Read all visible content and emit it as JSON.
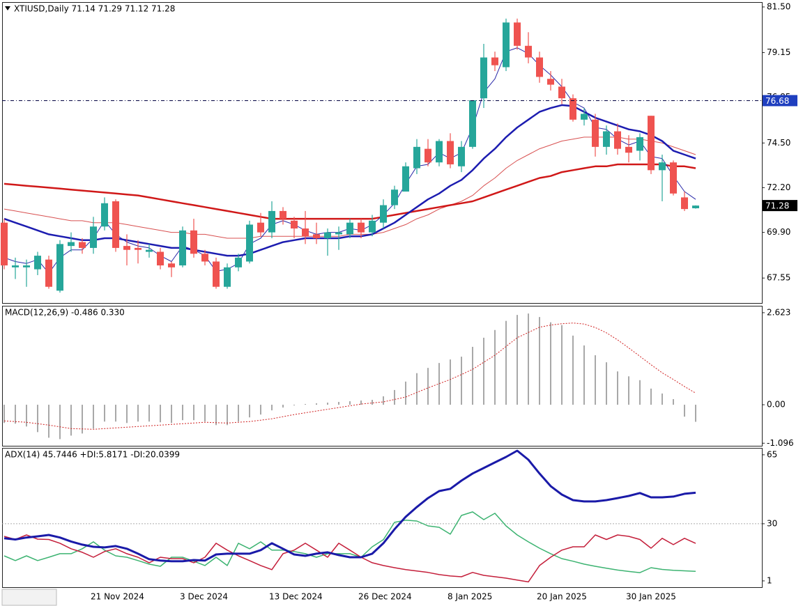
{
  "chart_data": [
    {
      "type": "candlestick",
      "title": "XTIUSD,Daily  71.14 71.29 71.12 71.28",
      "categories": [
        null,
        null,
        null,
        null,
        null,
        null,
        null,
        null,
        "21 Nov 2024",
        null,
        null,
        null,
        null,
        null,
        null,
        null,
        "3 Dec 2024",
        null,
        null,
        null,
        null,
        null,
        null,
        null,
        "13 Dec 2024",
        null,
        null,
        null,
        null,
        null,
        null,
        null,
        "26 Dec 2024",
        null,
        null,
        null,
        null,
        null,
        null,
        null,
        "8 Jan 2025",
        null,
        null,
        null,
        null,
        null,
        null,
        null,
        "20 Jan 2025",
        null,
        null,
        null,
        null,
        null,
        null,
        null,
        "30 Jan 2025",
        null,
        null,
        null,
        null,
        null,
        null
      ],
      "open": [
        70.4,
        68.1,
        68.1,
        68.0,
        68.5,
        66.9,
        69.2,
        69.4,
        69.1,
        70.2,
        71.5,
        69.2,
        69.1,
        68.9,
        68.9,
        68.3,
        68.2,
        70.0,
        68.8,
        68.4,
        67.1,
        68.1,
        68.4,
        70.4,
        69.9,
        71.0,
        70.5,
        70.1,
        69.8,
        69.6,
        69.8,
        69.8,
        70.4,
        69.9,
        70.4,
        71.3,
        72.0,
        73.2,
        74.2,
        73.5,
        74.6,
        73.3,
        74.3,
        76.8,
        78.9,
        78.4,
        80.7,
        79.5,
        78.9,
        77.8,
        77.4,
        76.8,
        75.7,
        75.7,
        74.3,
        75.1,
        74.3,
        74.1,
        75.9,
        73.1,
        73.5,
        71.7,
        71.14
      ],
      "high": [
        70.6,
        68.6,
        68.5,
        68.9,
        68.7,
        69.5,
        69.9,
        69.6,
        70.7,
        71.7,
        71.6,
        69.8,
        69.5,
        69.3,
        69.1,
        68.4,
        70.2,
        70.6,
        69.0,
        68.6,
        68.3,
        68.8,
        70.5,
        70.9,
        71.5,
        71.2,
        70.7,
        71.0,
        70.4,
        70.1,
        70.2,
        70.6,
        70.6,
        70.8,
        71.6,
        72.3,
        73.5,
        74.7,
        74.7,
        74.7,
        75.0,
        74.6,
        76.7,
        79.6,
        79.2,
        80.9,
        80.9,
        80.2,
        79.2,
        78.2,
        77.8,
        77.0,
        76.3,
        76.0,
        75.4,
        75.5,
        74.9,
        75.0,
        75.9,
        73.9,
        73.6,
        72.0,
        71.29
      ],
      "low": [
        68.0,
        67.5,
        67.1,
        67.7,
        67.0,
        66.8,
        68.9,
        68.8,
        68.8,
        70.0,
        68.9,
        68.2,
        68.3,
        68.6,
        68.0,
        67.6,
        68.1,
        68.6,
        68.2,
        67.0,
        67.0,
        67.9,
        68.3,
        69.7,
        69.6,
        70.3,
        69.6,
        69.3,
        69.3,
        68.7,
        69.0,
        69.6,
        69.6,
        69.7,
        70.1,
        71.1,
        72.0,
        72.9,
        73.3,
        73.3,
        73.2,
        73.0,
        74.2,
        76.3,
        78.2,
        78.2,
        79.3,
        78.6,
        77.6,
        77.2,
        76.5,
        75.6,
        75.4,
        73.8,
        73.9,
        73.9,
        73.5,
        73.6,
        72.9,
        71.5,
        71.8,
        71.0,
        71.12
      ],
      "close": [
        68.2,
        68.2,
        68.2,
        68.7,
        67.1,
        69.3,
        69.4,
        69.1,
        70.2,
        71.4,
        69.1,
        69.0,
        69.0,
        69.0,
        68.2,
        68.1,
        70.0,
        68.8,
        68.4,
        67.1,
        68.1,
        68.6,
        70.3,
        69.9,
        71.0,
        70.6,
        70.1,
        69.7,
        69.6,
        69.9,
        69.9,
        70.4,
        69.9,
        70.5,
        71.3,
        72.1,
        73.3,
        74.3,
        73.5,
        74.6,
        73.4,
        74.3,
        76.7,
        78.9,
        78.5,
        80.7,
        79.5,
        78.9,
        77.9,
        77.5,
        76.8,
        75.7,
        76.0,
        74.3,
        75.1,
        74.2,
        74.0,
        74.8,
        73.1,
        73.5,
        71.9,
        71.1,
        71.28
      ],
      "up_color": "#26a69a",
      "down_color": "#ef5350",
      "lines": [
        {
          "color": "#d85050",
          "width": 1,
          "values": [
            71.1,
            71.0,
            70.9,
            70.8,
            70.7,
            70.6,
            70.5,
            70.5,
            70.4,
            70.4,
            70.4,
            70.3,
            70.2,
            70.1,
            70.0,
            69.9,
            69.9,
            69.8,
            69.8,
            69.7,
            69.6,
            69.6,
            69.6,
            69.7,
            69.7,
            69.7,
            69.7,
            69.7,
            69.7,
            69.7,
            69.7,
            69.8,
            69.8,
            69.8,
            69.9,
            70.1,
            70.3,
            70.6,
            70.8,
            71.1,
            71.3,
            71.5,
            71.8,
            72.3,
            72.7,
            73.2,
            73.6,
            73.9,
            74.2,
            74.4,
            74.6,
            74.7,
            74.8,
            74.8,
            74.8,
            74.8,
            74.7,
            74.7,
            74.6,
            74.5,
            74.3,
            74.1,
            73.9
          ]
        },
        {
          "color": "#d01818",
          "width": 2.5,
          "values": [
            72.4,
            72.35,
            72.3,
            72.25,
            72.2,
            72.15,
            72.1,
            72.05,
            72.0,
            71.95,
            71.9,
            71.85,
            71.8,
            71.7,
            71.6,
            71.5,
            71.4,
            71.3,
            71.2,
            71.1,
            71.0,
            70.9,
            70.8,
            70.7,
            70.6,
            70.6,
            70.6,
            70.6,
            70.6,
            70.6,
            70.6,
            70.6,
            70.6,
            70.6,
            70.7,
            70.8,
            70.9,
            71.0,
            71.1,
            71.2,
            71.3,
            71.4,
            71.5,
            71.7,
            71.9,
            72.1,
            72.3,
            72.5,
            72.7,
            72.8,
            73.0,
            73.1,
            73.2,
            73.3,
            73.3,
            73.4,
            73.4,
            73.4,
            73.4,
            73.4,
            73.3,
            73.3,
            73.2
          ]
        },
        {
          "color": "#2828a8",
          "width": 1,
          "values": [
            68.6,
            68.4,
            68.3,
            68.5,
            67.8,
            68.6,
            69.0,
            69.0,
            69.6,
            70.5,
            69.8,
            69.4,
            69.2,
            69.1,
            68.7,
            68.4,
            69.2,
            69.0,
            68.7,
            67.9,
            68.0,
            68.3,
            69.3,
            69.6,
            70.3,
            70.5,
            70.3,
            70.0,
            69.8,
            69.9,
            69.9,
            70.1,
            70.0,
            70.3,
            70.8,
            71.4,
            72.4,
            73.3,
            73.4,
            74.0,
            73.7,
            74.0,
            75.3,
            77.1,
            77.8,
            79.2,
            79.4,
            79.1,
            78.5,
            78.0,
            77.4,
            76.6,
            76.3,
            75.3,
            75.2,
            74.7,
            74.4,
            74.6,
            73.8,
            73.7,
            72.8,
            72.0,
            71.6
          ]
        },
        {
          "color": "#1c1cb0",
          "width": 2.5,
          "values": [
            70.6,
            70.4,
            70.2,
            70.0,
            69.8,
            69.7,
            69.6,
            69.5,
            69.5,
            69.6,
            69.6,
            69.5,
            69.4,
            69.3,
            69.2,
            69.1,
            69.1,
            69.0,
            68.9,
            68.8,
            68.7,
            68.7,
            68.8,
            69.0,
            69.2,
            69.4,
            69.5,
            69.6,
            69.6,
            69.6,
            69.6,
            69.7,
            69.7,
            69.8,
            70.1,
            70.4,
            70.8,
            71.2,
            71.6,
            71.9,
            72.3,
            72.6,
            73.1,
            73.7,
            74.2,
            74.8,
            75.3,
            75.7,
            76.1,
            76.3,
            76.45,
            76.4,
            76.1,
            75.8,
            75.6,
            75.4,
            75.2,
            75.1,
            74.9,
            74.6,
            74.1,
            73.9,
            73.7
          ]
        }
      ],
      "ylim": [
        66.23,
        81.75
      ],
      "yticks": [
        {
          "value": 81.5,
          "label": "81.50"
        },
        79.15,
        76.85,
        {
          "value": 74.5,
          "label": "74.50"
        },
        {
          "value": 72.2,
          "label": "72.20"
        },
        {
          "value": 69.9,
          "label": "69.90"
        },
        67.55
      ],
      "hline": 76.68,
      "hline_color": "#1f3fbf",
      "last_price": 71.28
    },
    {
      "type": "macd",
      "title": "MACD(12,26,9) -0.486 0.330",
      "histogram": {
        "color": "#a8a8a8",
        "values": [
          -0.52,
          -0.54,
          -0.62,
          -0.78,
          -0.94,
          -0.98,
          -0.88,
          -0.82,
          -0.68,
          -0.48,
          -0.48,
          -0.52,
          -0.48,
          -0.48,
          -0.5,
          -0.52,
          -0.44,
          -0.44,
          -0.48,
          -0.58,
          -0.58,
          -0.48,
          -0.36,
          -0.28,
          -0.16,
          -0.08,
          -0.02,
          0.02,
          0.04,
          0.06,
          0.08,
          0.1,
          0.12,
          0.14,
          0.24,
          0.42,
          0.66,
          0.9,
          1.05,
          1.19,
          1.29,
          1.37,
          1.65,
          1.91,
          2.13,
          2.39,
          2.56,
          2.6,
          2.5,
          2.35,
          2.27,
          1.97,
          1.69,
          1.41,
          1.21,
          0.95,
          0.81,
          0.7,
          0.46,
          0.32,
          0.16,
          -0.34,
          -0.486
        ]
      },
      "signal": {
        "color": "#d02020",
        "values": [
          -0.46,
          -0.48,
          -0.5,
          -0.54,
          -0.58,
          -0.63,
          -0.68,
          -0.69,
          -0.7,
          -0.68,
          -0.66,
          -0.64,
          -0.62,
          -0.6,
          -0.58,
          -0.56,
          -0.54,
          -0.52,
          -0.5,
          -0.51,
          -0.52,
          -0.5,
          -0.48,
          -0.44,
          -0.4,
          -0.34,
          -0.28,
          -0.23,
          -0.18,
          -0.13,
          -0.08,
          -0.03,
          0.02,
          0.05,
          0.08,
          0.15,
          0.22,
          0.35,
          0.48,
          0.6,
          0.72,
          0.86,
          1.01,
          1.21,
          1.41,
          1.66,
          1.91,
          2.06,
          2.21,
          2.27,
          2.31,
          2.33,
          2.3,
          2.2,
          2.05,
          1.85,
          1.62,
          1.38,
          1.14,
          0.91,
          0.72,
          0.52,
          0.33
        ]
      },
      "ylim": [
        -1.17,
        2.82
      ],
      "yticks": [
        2.623,
        {
          "value": 0,
          "label": "0.00"
        },
        -1.096
      ]
    },
    {
      "type": "line",
      "title": "ADX(14) 45.7446 +DI:5.8171 -DI:20.0399",
      "series": [
        {
          "color": "#3cb371",
          "width": 1.5,
          "values": [
            13.7,
            11.3,
            13.7,
            11.3,
            13.0,
            14.8,
            14.8,
            17.3,
            20.8,
            16.6,
            13.7,
            13.0,
            11.3,
            9.5,
            8.4,
            13.0,
            13.0,
            11.0,
            8.8,
            13.0,
            8.8,
            20.1,
            17.3,
            20.8,
            16.6,
            16.6,
            15.9,
            14.8,
            13.0,
            14.8,
            14.8,
            14.8,
            13.0,
            18.3,
            21.9,
            30.7,
            31.8,
            31.4,
            28.9,
            28.2,
            24.7,
            34.2,
            36.0,
            32.1,
            35.3,
            28.9,
            24.3,
            20.8,
            17.6,
            14.8,
            12.3,
            11.0,
            9.5,
            8.4,
            7.4,
            6.5,
            5.8,
            5.2,
            7.7,
            6.8,
            6.4,
            6.1,
            5.8171
          ]
        },
        {
          "color": "#c41e3a",
          "width": 1.5,
          "values": [
            23.6,
            22.0,
            24.3,
            22.2,
            22.0,
            20.1,
            17.3,
            15.5,
            13.0,
            15.9,
            17.3,
            14.8,
            13.0,
            10.2,
            13.0,
            12.3,
            12.3,
            10.2,
            13.0,
            20.1,
            16.6,
            13.7,
            11.3,
            8.8,
            6.7,
            14.8,
            16.6,
            20.1,
            16.6,
            13.0,
            20.1,
            16.6,
            13.0,
            10.2,
            8.8,
            7.7,
            6.7,
            6.0,
            5.3,
            4.2,
            3.5,
            3.1,
            5.3,
            3.8,
            3.1,
            2.4,
            1.4,
            0.5,
            8.8,
            13.0,
            16.6,
            18.3,
            18.3,
            24.3,
            22.0,
            24.3,
            23.6,
            22.0,
            17.6,
            22.6,
            19.4,
            22.6,
            20.0399
          ]
        },
        {
          "color": "#1a1aa8",
          "width": 3,
          "values": [
            22.6,
            22.0,
            23.0,
            23.6,
            24.3,
            23.0,
            21.0,
            19.4,
            18.3,
            18.0,
            18.7,
            17.3,
            14.8,
            12.0,
            11.3,
            11.0,
            11.0,
            11.6,
            11.3,
            14.4,
            14.8,
            14.8,
            14.8,
            16.6,
            20.1,
            17.3,
            14.4,
            13.7,
            14.8,
            15.5,
            14.1,
            13.0,
            13.0,
            14.8,
            20.1,
            27.2,
            33.5,
            38.5,
            43.0,
            46.6,
            47.7,
            51.9,
            55.5,
            58.3,
            61.1,
            63.9,
            67.1,
            62.5,
            55.5,
            49.1,
            44.8,
            42.0,
            41.3,
            41.3,
            42.0,
            43.0,
            44.1,
            45.6,
            43.4,
            43.4,
            43.8,
            45.2,
            45.7446
          ]
        }
      ],
      "ylim": [
        -2.2,
        68.5
      ],
      "yticks": [
        65,
        30,
        1
      ],
      "levels": [
        30
      ]
    }
  ]
}
